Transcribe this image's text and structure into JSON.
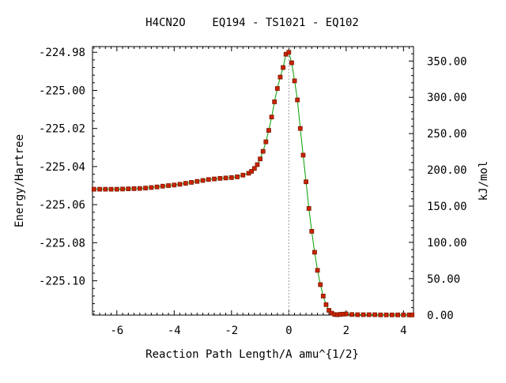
{
  "chart_data": {
    "type": "line",
    "title": "H4CN2O    EQ194 - TS1021 - EQ102",
    "xlabel": "Reaction Path Length/A amu^{1/2}",
    "ylabel": "Energy/Hartree",
    "y2label": "kJ/mol",
    "xlim": [
      -6.85,
      4.35
    ],
    "ylim": [
      -225.118,
      -224.977
    ],
    "xticks": [
      -6,
      -4,
      -2,
      0,
      2,
      4
    ],
    "xtick_labels": [
      "-6",
      "-4",
      "-2",
      "0",
      "2",
      "4"
    ],
    "yticks": [
      -224.98,
      -225.0,
      -225.02,
      -225.04,
      -225.06,
      -225.08,
      -225.1
    ],
    "ytick_labels": [
      "-224.98",
      "-225.00",
      "-225.02",
      "-225.04",
      "-225.06",
      "-225.08",
      "-225.10"
    ],
    "y2ticks_kjmol": [
      0,
      50,
      100,
      150,
      200,
      250,
      300,
      350
    ],
    "y2tick_labels": [
      "0.00",
      "50.00",
      "100.00",
      "150.00",
      "200.00",
      "250.00",
      "300.00",
      "350.00"
    ],
    "y2_zero_hartree": -225.1179,
    "kj_per_hartree": 2625.5,
    "ts_marker_x": 0,
    "grid": false,
    "line_color": "#00a000",
    "marker_color": "#cc2200",
    "marker_edge": "#7a1a00",
    "axis_color": "#000000",
    "ts_line_color": "#999999",
    "series": [
      {
        "x": [
          -6.8,
          -6.6,
          -6.4,
          -6.2,
          -6.0,
          -5.8,
          -5.6,
          -5.4,
          -5.2,
          -5.0,
          -4.8,
          -4.6,
          -4.4,
          -4.2,
          -4.0,
          -3.8,
          -3.6,
          -3.4,
          -3.2,
          -3.0,
          -2.8,
          -2.6,
          -2.4,
          -2.2,
          -2.0,
          -1.8,
          -1.6,
          -1.4,
          -1.3,
          -1.2,
          -1.1,
          -1.0,
          -0.9,
          -0.8,
          -0.7,
          -0.6,
          -0.5,
          -0.4,
          -0.3,
          -0.2,
          -0.1,
          0.0,
          0.1,
          0.2,
          0.3,
          0.4,
          0.5,
          0.6,
          0.7,
          0.8,
          0.9,
          1.0,
          1.1,
          1.2,
          1.3,
          1.4,
          1.5,
          1.6,
          1.7,
          1.8,
          1.9,
          2.0,
          2.2,
          2.4,
          2.6,
          2.8,
          3.0,
          3.2,
          3.4,
          3.6,
          3.8,
          4.0,
          4.2,
          4.3
        ],
        "y": [
          -225.0519,
          -225.0519,
          -225.0519,
          -225.0519,
          -225.0519,
          -225.0518,
          -225.0517,
          -225.0516,
          -225.0515,
          -225.0513,
          -225.051,
          -225.0507,
          -225.0503,
          -225.05,
          -225.0497,
          -225.0493,
          -225.0488,
          -225.0483,
          -225.0478,
          -225.0473,
          -225.0468,
          -225.0465,
          -225.0462,
          -225.046,
          -225.0458,
          -225.0454,
          -225.0445,
          -225.0435,
          -225.0425,
          -225.041,
          -225.039,
          -225.036,
          -225.032,
          -225.027,
          -225.021,
          -225.014,
          -225.006,
          -224.999,
          -224.993,
          -224.988,
          -224.981,
          -224.98,
          -224.9855,
          -224.995,
          -225.005,
          -225.02,
          -225.034,
          -225.048,
          -225.062,
          -225.074,
          -225.085,
          -225.0945,
          -225.102,
          -225.108,
          -225.1125,
          -225.1155,
          -225.117,
          -225.1177,
          -225.1178,
          -225.1176,
          -225.1175,
          -225.1174,
          -225.1177,
          -225.1178,
          -225.1178,
          -225.1178,
          -225.1178,
          -225.1179,
          -225.1179,
          -225.1179,
          -225.1179,
          -225.1179,
          -225.1179,
          -225.1179
        ]
      }
    ]
  }
}
